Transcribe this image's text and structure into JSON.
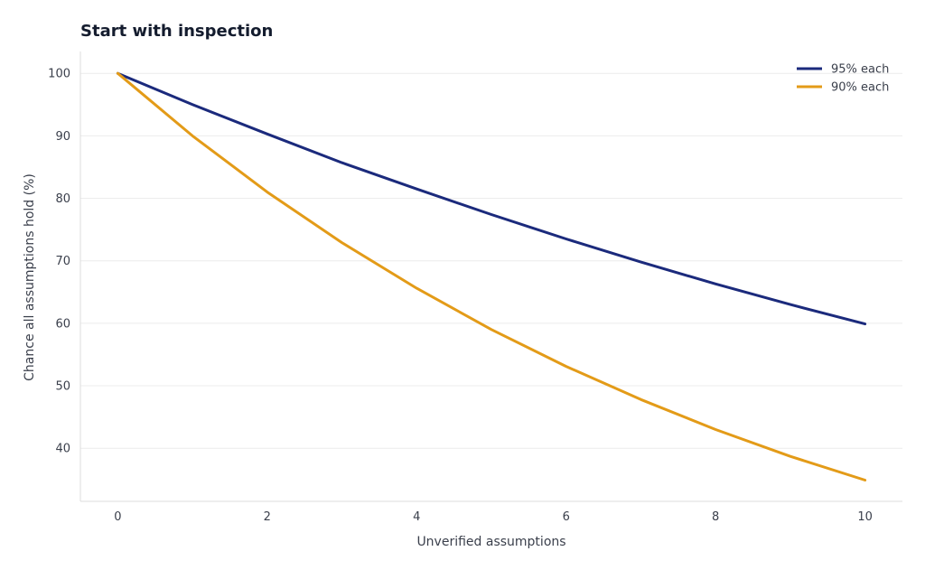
{
  "chart_data": {
    "type": "line",
    "title": "Start with inspection",
    "xlabel": "Unverified assumptions",
    "ylabel": "Chance all assumptions hold (%)",
    "xlim": [
      -0.5,
      10.5
    ],
    "ylim": [
      31.5,
      103.5
    ],
    "xticks": [
      0,
      2,
      4,
      6,
      8,
      10
    ],
    "yticks": [
      40,
      50,
      60,
      70,
      80,
      90,
      100
    ],
    "grid": "horizontal",
    "legend_position": "top-right",
    "x": [
      0,
      1,
      2,
      3,
      4,
      5,
      6,
      7,
      8,
      9,
      10
    ],
    "series": [
      {
        "name": "95% each",
        "color": "#1b2a7c",
        "values": [
          100,
          95.0,
          90.3,
          85.7,
          81.5,
          77.4,
          73.5,
          69.8,
          66.3,
          63.0,
          59.9
        ]
      },
      {
        "name": "90% each",
        "color": "#e39b18",
        "values": [
          100,
          90.0,
          81.0,
          72.9,
          65.6,
          59.0,
          53.1,
          47.8,
          43.0,
          38.7,
          34.9
        ]
      }
    ]
  }
}
